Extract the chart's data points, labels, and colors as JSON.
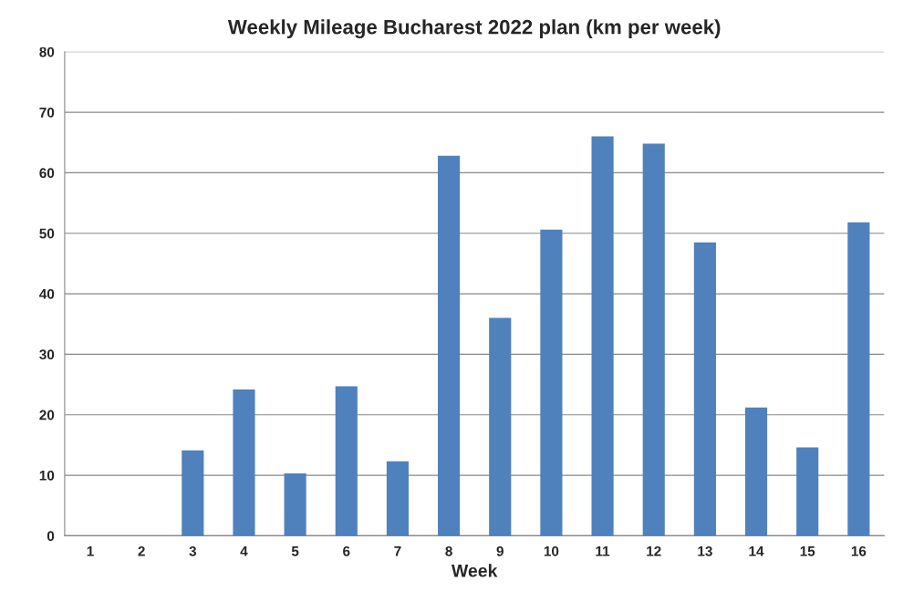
{
  "chart_data": {
    "type": "bar",
    "title": "Weekly Mileage Bucharest 2022 plan (km per week)",
    "xlabel": "Week",
    "categories": [
      "1",
      "2",
      "3",
      "4",
      "5",
      "6",
      "7",
      "8",
      "9",
      "10",
      "11",
      "12",
      "13",
      "14",
      "15",
      "16"
    ],
    "values": [
      0,
      0,
      14.1,
      24.2,
      10.3,
      24.7,
      12.3,
      62.8,
      36.0,
      50.6,
      66.0,
      64.8,
      48.5,
      21.2,
      14.6,
      51.8
    ],
    "color": "#4f81bd",
    "ylim": [
      0,
      80
    ],
    "yticks": [
      0,
      10,
      20,
      30,
      40,
      50,
      60,
      70,
      80
    ],
    "grid": "y"
  }
}
